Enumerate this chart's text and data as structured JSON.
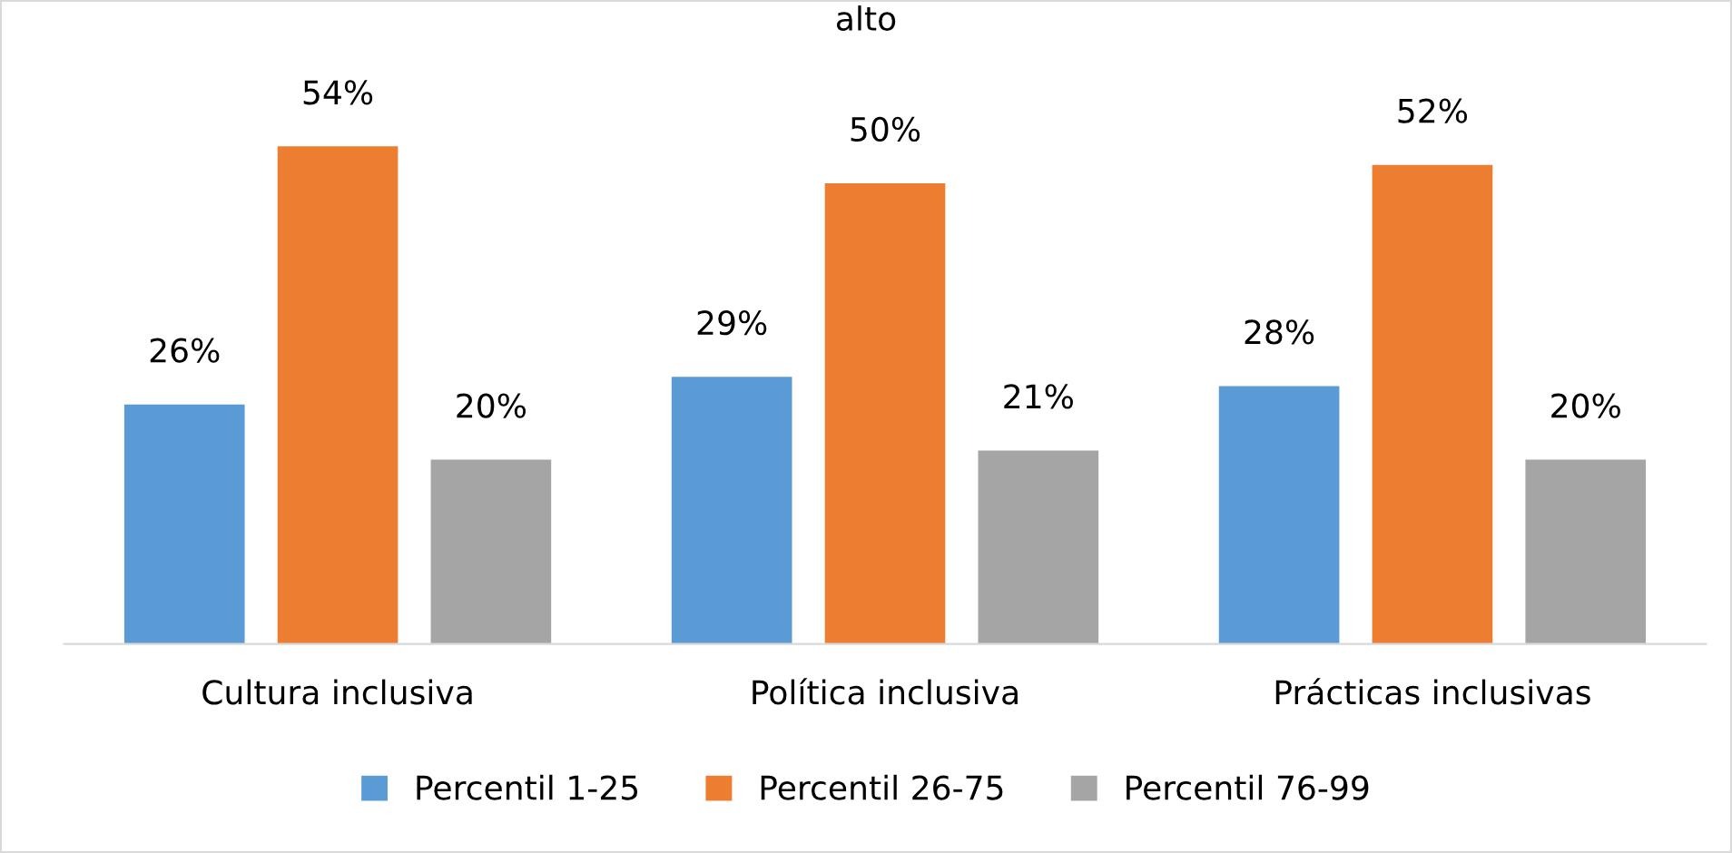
{
  "chart_data": {
    "type": "bar",
    "title": "alto",
    "categories": [
      "Cultura inclusiva",
      "Política inclusiva",
      "Prácticas inclusivas"
    ],
    "series": [
      {
        "name": "Percentil 1-25",
        "color": "#5b9bd5",
        "values": [
          26,
          29,
          28
        ],
        "value_labels": [
          "26%",
          "29%",
          "28%"
        ]
      },
      {
        "name": "Percentil 26-75",
        "color": "#ed7d31",
        "values": [
          54,
          50,
          52
        ],
        "value_labels": [
          "54%",
          "50%",
          "52%"
        ]
      },
      {
        "name": "Percentil 76-99",
        "color": "#a5a5a5",
        "values": [
          20,
          21,
          20
        ],
        "value_labels": [
          "20%",
          "21%",
          "20%"
        ]
      }
    ],
    "grid": false,
    "legend": "bottom",
    "tick_labels": "x"
  }
}
